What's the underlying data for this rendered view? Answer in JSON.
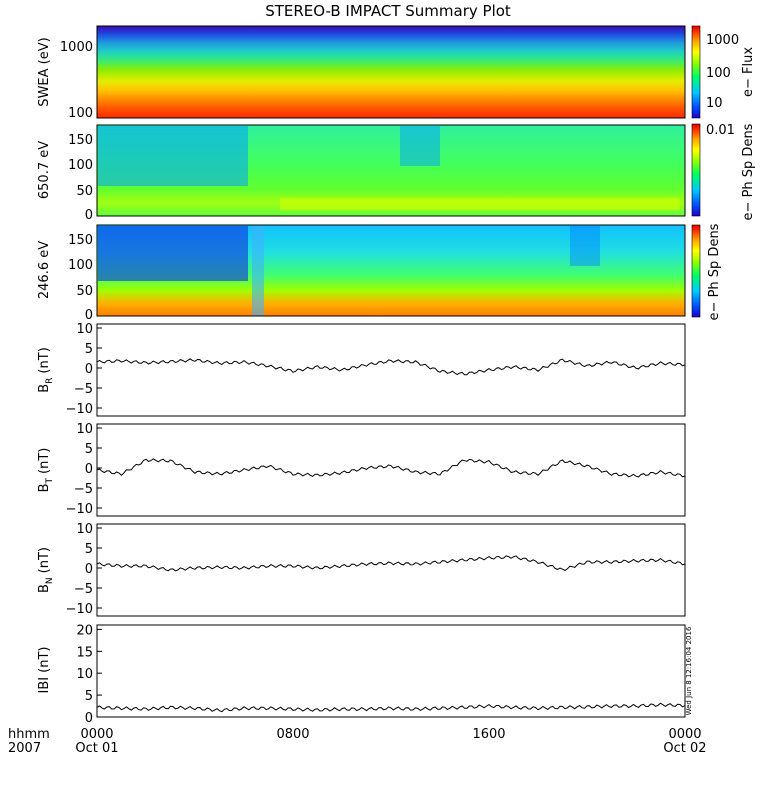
{
  "title": "STEREO-B IMPACT Summary Plot",
  "stamp": "Wed Jun  8 12:16:04 2016",
  "x_axis": {
    "ticks": [
      "0000",
      "0800",
      "1600",
      "0000"
    ],
    "date_labels": [
      "Oct 01",
      "Oct 02"
    ],
    "corner_label_1": "hhmm",
    "corner_label_2": "2007"
  },
  "colors": {
    "background": "#ffffff",
    "line": "#000000",
    "spectrogram_scale": [
      "#2000c8",
      "#0050ff",
      "#00c8ff",
      "#00ff64",
      "#96ff00",
      "#ffff00",
      "#ffa000",
      "#ff3000",
      "#e00000"
    ]
  },
  "chart_data": [
    {
      "type": "heatmap",
      "name": "swea-energy-spectrogram",
      "ylabel": "SWEA (eV)",
      "y_scale": "log",
      "ylim": [
        100,
        2000
      ],
      "yticks": [
        "1000",
        "100"
      ],
      "colorbar": {
        "label": "e− Flux",
        "scale": "log",
        "ticks": [
          "1000",
          "100",
          "10"
        ]
      },
      "description_values": {
        "high_flux_energy_eV": 100,
        "low_flux_energy_eV": 1700
      }
    },
    {
      "type": "heatmap",
      "name": "pitch-angle-650eV",
      "ylabel": "650.7 eV",
      "ylim": [
        0,
        180
      ],
      "yticks": [
        "150",
        "100",
        "50",
        "0"
      ],
      "colorbar": {
        "label": "e− Ph Sp Dens",
        "ticks": [
          "0.01"
        ]
      }
    },
    {
      "type": "heatmap",
      "name": "pitch-angle-246eV",
      "ylabel": "246.6 eV",
      "ylim": [
        0,
        180
      ],
      "yticks": [
        "150",
        "100",
        "50",
        "0"
      ],
      "colorbar": {
        "label": "e− Ph Sp Dens",
        "ticks": []
      }
    },
    {
      "type": "line",
      "name": "br",
      "ylabel_main": "B",
      "ylabel_sub": "R",
      "ylabel_unit": "(nT)",
      "ylim": [
        -12,
        11
      ],
      "yticks": [
        "10",
        "5",
        "0",
        "−5",
        "−10"
      ],
      "x_hours": [
        0,
        1,
        2,
        3,
        4,
        5,
        6,
        7,
        8,
        9,
        10,
        11,
        12,
        13,
        14,
        15,
        16,
        17,
        18,
        19,
        20,
        21,
        22,
        23,
        24
      ],
      "values": [
        1.5,
        1.8,
        1.3,
        1.6,
        2.0,
        1.2,
        1.5,
        0.5,
        -0.8,
        0.3,
        -0.5,
        0.8,
        1.8,
        1.5,
        -0.8,
        -1.5,
        -0.5,
        0.3,
        -0.5,
        2.0,
        0.5,
        1.5,
        0.0,
        1.2,
        0.8
      ]
    },
    {
      "type": "line",
      "name": "bt",
      "ylabel_main": "B",
      "ylabel_sub": "T",
      "ylabel_unit": "(nT)",
      "ylim": [
        -12,
        11
      ],
      "yticks": [
        "10",
        "5",
        "0",
        "−5",
        "−10"
      ],
      "x_hours": [
        0,
        1,
        2,
        3,
        4,
        5,
        6,
        7,
        8,
        9,
        10,
        11,
        12,
        13,
        14,
        15,
        16,
        17,
        18,
        19,
        20,
        21,
        22,
        23,
        24
      ],
      "values": [
        -0.5,
        -1.5,
        2.0,
        1.8,
        -1.0,
        -1.5,
        -0.5,
        0.5,
        -1.5,
        -1.8,
        -1.2,
        0.0,
        0.5,
        -1.0,
        -1.5,
        2.0,
        1.5,
        -1.0,
        -1.5,
        1.8,
        0.5,
        -1.5,
        -2.0,
        -1.0,
        -2.0
      ]
    },
    {
      "type": "line",
      "name": "bn",
      "ylabel_main": "B",
      "ylabel_sub": "N",
      "ylabel_unit": "(nT)",
      "ylim": [
        -12,
        11
      ],
      "yticks": [
        "10",
        "5",
        "0",
        "−5",
        "−10"
      ],
      "x_hours": [
        0,
        1,
        2,
        3,
        4,
        5,
        6,
        7,
        8,
        9,
        10,
        11,
        12,
        13,
        14,
        15,
        16,
        17,
        18,
        19,
        20,
        21,
        22,
        23,
        24
      ],
      "values": [
        1.0,
        0.5,
        0.5,
        -0.5,
        0.0,
        0.2,
        0.0,
        0.5,
        0.5,
        0.0,
        0.5,
        1.0,
        1.2,
        1.0,
        1.5,
        2.0,
        2.5,
        2.8,
        1.5,
        -0.5,
        1.5,
        1.5,
        1.8,
        2.0,
        1.0
      ]
    },
    {
      "type": "line",
      "name": "btotal",
      "ylabel_main": "IBI",
      "ylabel_unit": "(nT)",
      "ylim": [
        0,
        21
      ],
      "yticks": [
        "20",
        "15",
        "10",
        "5",
        "0"
      ],
      "x_hours": [
        0,
        1,
        2,
        3,
        4,
        5,
        6,
        7,
        8,
        9,
        10,
        11,
        12,
        13,
        14,
        15,
        16,
        17,
        18,
        19,
        20,
        21,
        22,
        23,
        24
      ],
      "values": [
        2.2,
        2.0,
        1.8,
        2.2,
        2.0,
        1.5,
        2.0,
        2.0,
        1.8,
        1.6,
        1.8,
        1.8,
        2.0,
        1.8,
        2.0,
        2.2,
        2.5,
        2.2,
        2.0,
        2.2,
        2.3,
        2.5,
        2.5,
        2.8,
        2.6
      ]
    }
  ]
}
